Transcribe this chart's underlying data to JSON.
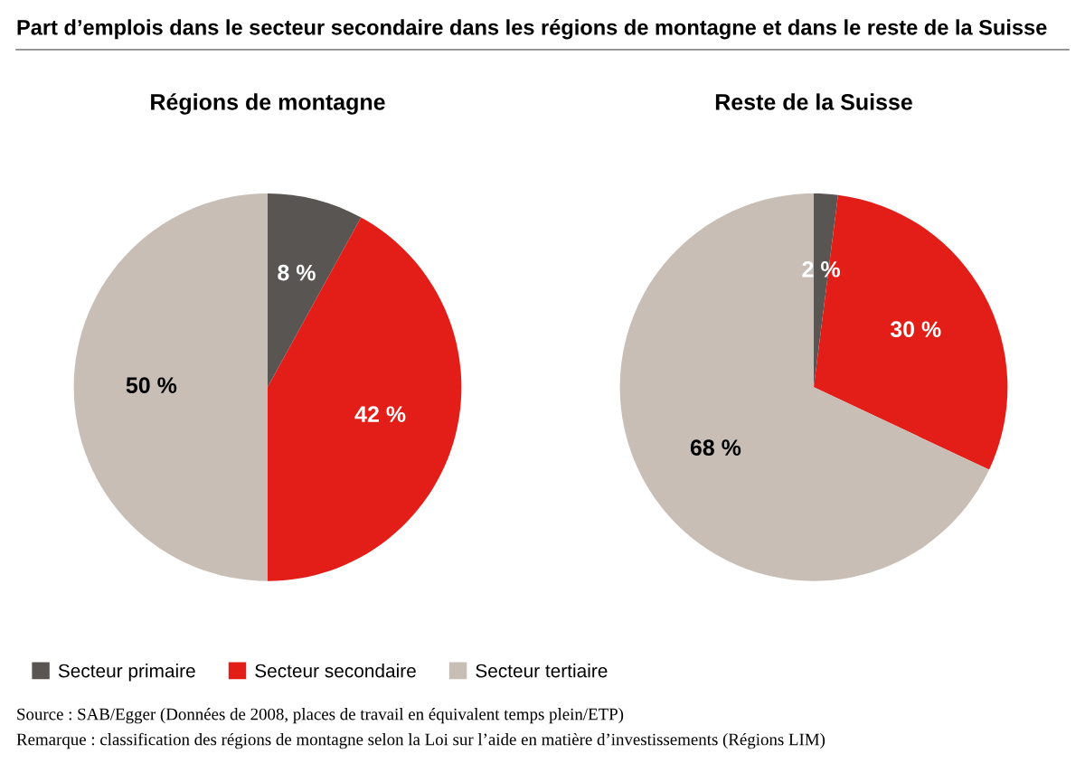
{
  "chart_data": [
    {
      "type": "pie",
      "title": "Régions de montagne",
      "categories": [
        "Secteur primaire",
        "Secteur secondaire",
        "Secteur tertiaire"
      ],
      "values": [
        8,
        42,
        50
      ],
      "value_labels": [
        "8 %",
        "42 %",
        "50 %"
      ],
      "colors": [
        "#595553",
        "#e31e18",
        "#c8beb5"
      ],
      "legend": "bottom",
      "annotations": [
        "Part d’emplois dans le secteur secondaire dans les régions de montagne et dans le reste de la Suisse"
      ]
    },
    {
      "type": "pie",
      "title": "Reste de la Suisse",
      "categories": [
        null,
        null,
        null
      ],
      "values": [
        2,
        30,
        68
      ],
      "value_labels": [
        "2 %",
        "30 %",
        "68 %"
      ],
      "colors": [
        "#595553",
        "#e31e18",
        "#c8beb5"
      ],
      "annotations": [
        "Source : SAB/Egger (Données de 2008, places de travail en équivalent temps plein/ETP)",
        "Remarque : classification des régions de montagne selon la Loi sur l’aide en matière d’investissements (Régions LIM)"
      ]
    }
  ]
}
